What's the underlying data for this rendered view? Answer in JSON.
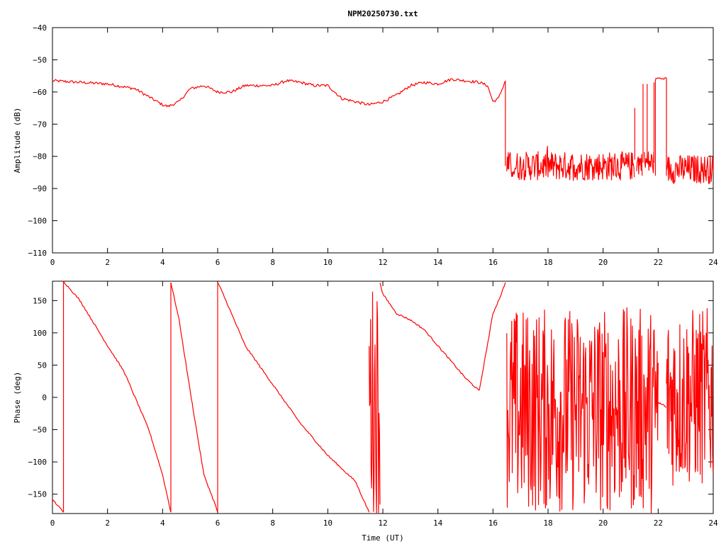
{
  "chart_data": [
    {
      "type": "line",
      "title": "NPM20250730.txt",
      "xlabel": "",
      "ylabel": "Amplitude (dB)",
      "xlim": [
        0,
        24
      ],
      "ylim": [
        -110,
        -40
      ],
      "xticks": [
        0,
        2,
        4,
        6,
        8,
        10,
        12,
        14,
        16,
        18,
        20,
        22,
        24
      ],
      "yticks": [
        -110,
        -100,
        -90,
        -80,
        -70,
        -60,
        -50,
        -40
      ],
      "grid": false,
      "color": "#ff0000",
      "series": [
        {
          "x": [
            0,
            1,
            2,
            3,
            3.5,
            4,
            4.2,
            4.6,
            5,
            5.5,
            6,
            6.5,
            7,
            7.5,
            8,
            8.5,
            9,
            9.5,
            10,
            10.5,
            11,
            11.5,
            12,
            12.5,
            13,
            13.5,
            14,
            14.5,
            15,
            15.5,
            15.8,
            16,
            16.2,
            16.45
          ],
          "y": [
            -56.5,
            -57,
            -57.5,
            -59,
            -61.5,
            -64,
            -64.5,
            -63,
            -59,
            -58,
            -60,
            -60,
            -58,
            -58,
            -58,
            -56.5,
            -57,
            -58,
            -58,
            -62,
            -63,
            -64,
            -63,
            -61,
            -58,
            -57,
            -57.5,
            -56,
            -56.5,
            -57,
            -58,
            -63,
            -62,
            -56.5
          ]
        }
      ],
      "noise_segments": [
        {
          "x_start": 16.5,
          "x_end": 21.15,
          "center": -83,
          "spread": 4.5
        },
        {
          "x_start": 21.2,
          "x_end": 21.45,
          "center": -82,
          "spread": 4
        },
        {
          "x_start": 21.5,
          "x_end": 21.85,
          "center": -82,
          "spread": 4
        },
        {
          "x_start": 22.3,
          "x_end": 24,
          "center": -84,
          "spread": 4.5
        }
      ],
      "spikes": [
        {
          "x": 16.45,
          "from": -56.5,
          "to": -83
        },
        {
          "x": 21.15,
          "from": -81,
          "to": -65
        },
        {
          "x": 21.45,
          "from": -82,
          "to": -57.5
        },
        {
          "x": 21.6,
          "from": -82,
          "to": -57.5
        },
        {
          "x": 21.85,
          "from": -82,
          "to": -57
        },
        {
          "x": 21.9,
          "from": -86,
          "to": -56
        },
        {
          "x": 22.3,
          "from": -55.5,
          "to": -86
        }
      ],
      "plateaus": [
        {
          "x_start": 21.9,
          "x_end": 22.3,
          "y": -55.8
        }
      ]
    },
    {
      "type": "line",
      "title": "",
      "xlabel": "Time (UT)",
      "ylabel": "Phase (deg)",
      "xlim": [
        0,
        24
      ],
      "ylim": [
        -180,
        180
      ],
      "xticks": [
        0,
        2,
        4,
        6,
        8,
        10,
        12,
        14,
        16,
        18,
        20,
        22,
        24
      ],
      "yticks": [
        -150,
        -100,
        -50,
        0,
        50,
        100,
        150
      ],
      "grid": false,
      "color": "#ff0000",
      "series": [
        {
          "x": [
            0,
            0.2,
            0.4
          ],
          "y": [
            -158,
            -168,
            -178
          ]
        },
        {
          "x": [
            0.4,
            0.5,
            1,
            2,
            2.6,
            3,
            3.5,
            4,
            4.3
          ],
          "y": [
            180,
            175,
            150,
            80,
            40,
            0,
            -50,
            -120,
            -178
          ]
        },
        {
          "x": [
            4.3,
            4.6,
            5,
            5.5,
            5.9,
            6.0
          ],
          "y": [
            178,
            120,
            10,
            -120,
            -165,
            -178
          ]
        },
        {
          "x": [
            6.0,
            6.2,
            7,
            8,
            9,
            10,
            11,
            11.5
          ],
          "y": [
            178,
            160,
            80,
            20,
            -40,
            -90,
            -130,
            -178
          ]
        },
        {
          "x": [
            11.9,
            12,
            12.5,
            13,
            13.5,
            14,
            15,
            15.5,
            16,
            16.3,
            16.45
          ],
          "y": [
            178,
            160,
            130,
            120,
            105,
            80,
            30,
            10,
            130,
            160,
            178
          ]
        },
        {
          "x": [
            22.0,
            22.1,
            22.3
          ],
          "y": [
            -8,
            -10,
            -15
          ]
        }
      ],
      "noise_segments": [
        {
          "x_start": 11.5,
          "x_end": 11.9,
          "center": 0,
          "spread": 180
        },
        {
          "x_start": 16.5,
          "x_end": 22.0,
          "center": -20,
          "spread": 160
        },
        {
          "x_start": 22.3,
          "x_end": 24,
          "center": 0,
          "spread": 140
        }
      ]
    }
  ]
}
